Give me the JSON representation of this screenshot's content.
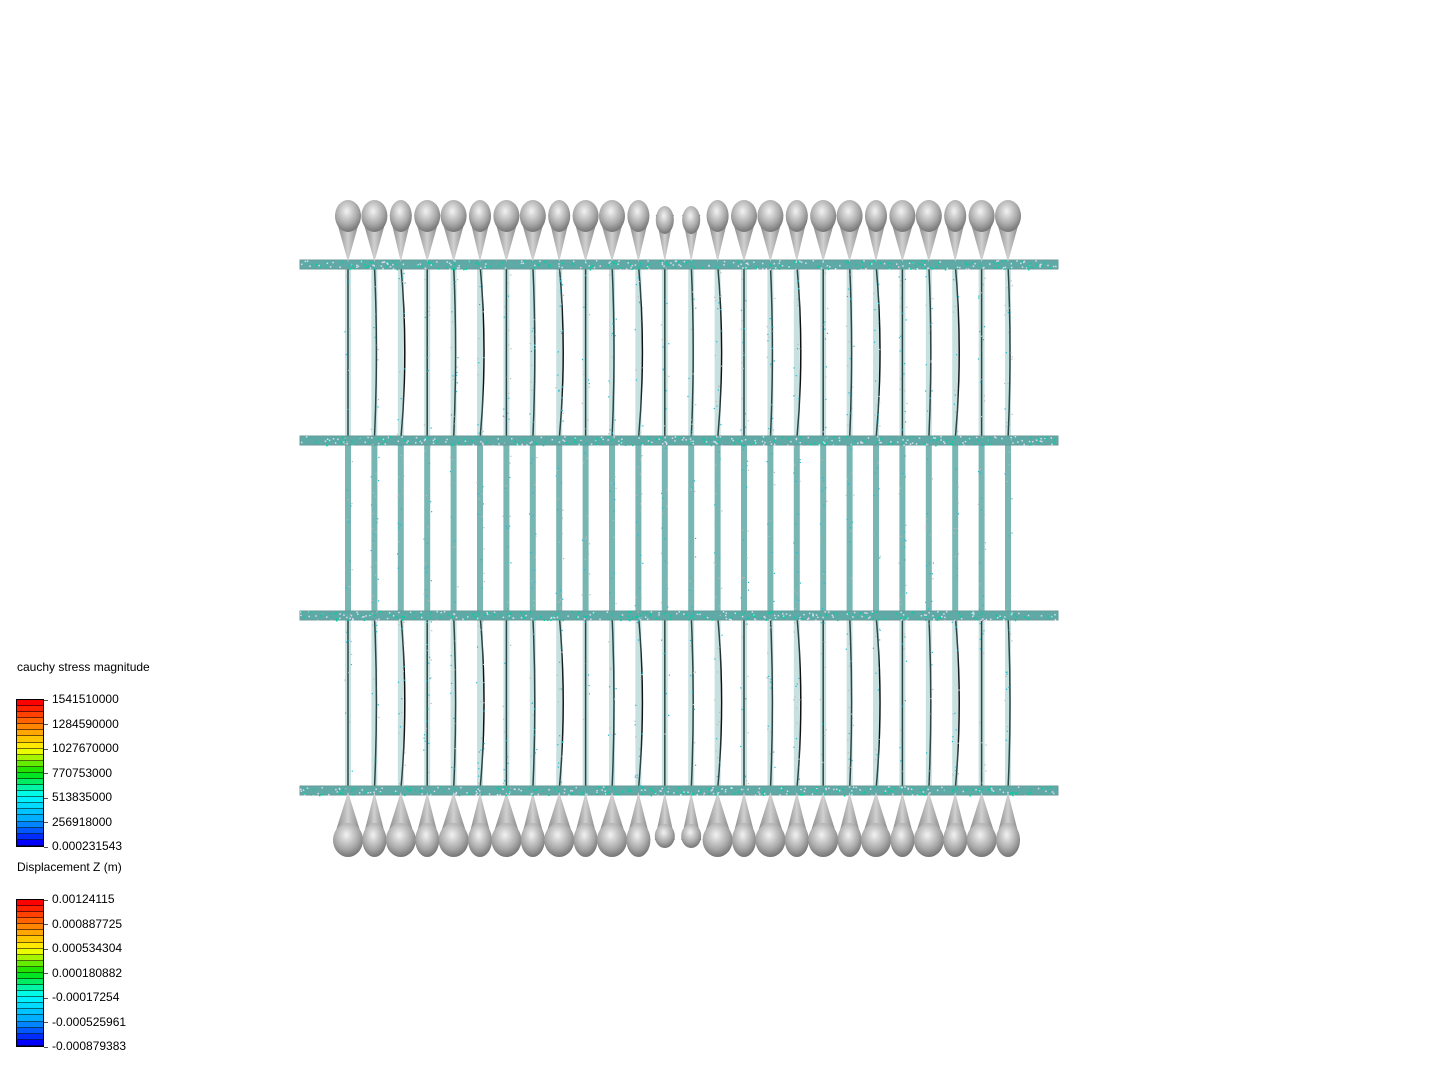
{
  "legends": [
    {
      "title": "cauchy stress magnitude",
      "labels": [
        "1541510000",
        "1284590000",
        "1027670000",
        "770753000",
        "513835000",
        "256918000",
        "0.000231543"
      ],
      "range": [
        0.000231543,
        1541510000
      ]
    },
    {
      "title": "Displacement Z (m)",
      "labels": [
        "0.00124115",
        "0.000887725",
        "0.000534304",
        "0.000180882",
        "-0.00017254",
        "-0.000525961",
        "-0.000879383"
      ],
      "range": [
        -0.000879383,
        0.00124115
      ]
    }
  ],
  "colormap": [
    "#ff0000",
    "#ff7f00",
    "#ffff00",
    "#00e000",
    "#00ffff",
    "#00aaff",
    "#0000ff"
  ],
  "colors": {
    "mesh": "#5fa9a6",
    "blob": "#9a9a9a",
    "accent": "#00d0a0"
  }
}
